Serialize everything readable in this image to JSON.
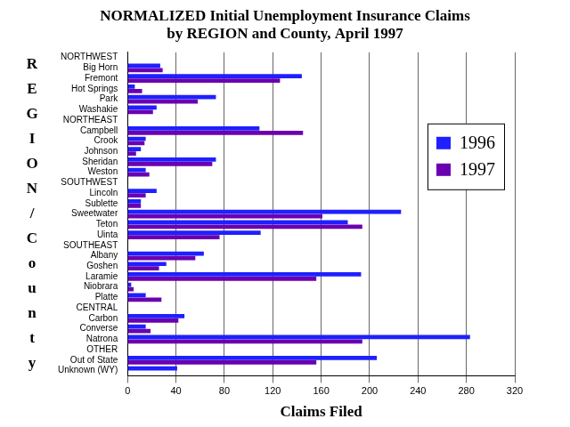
{
  "chart_data": {
    "type": "bar",
    "orientation": "horizontal",
    "title": [
      "NORMALIZED Initial Unemployment Insurance Claims",
      "by REGION and County, April 1997"
    ],
    "xlabel": "Claims Filed",
    "ylabel": "REGION/County",
    "categories": [
      "NORTHWEST",
      "Big Horn",
      "Fremont",
      "Hot Springs",
      "Park",
      "Washakie",
      "NORTHEAST",
      "Campbell",
      "Crook",
      "Johnson",
      "Sheridan",
      "Weston",
      "SOUTHWEST",
      "Lincoln",
      "Sublette",
      "Sweetwater",
      "Teton",
      "Uinta",
      "SOUTHEAST",
      "Albany",
      "Goshen",
      "Laramie",
      "Niobrara",
      "Platte",
      "CENTRAL",
      "Carbon",
      "Converse",
      "Natrona",
      "OTHER",
      "Out of State",
      "Unknown (WY)"
    ],
    "series": [
      {
        "name": "1996",
        "color": "#1f1fff",
        "values": [
          null,
          27,
          144,
          6,
          73,
          24,
          null,
          109,
          15,
          11,
          73,
          15,
          null,
          24,
          11,
          226,
          182,
          110,
          null,
          63,
          32,
          193,
          3,
          15,
          null,
          47,
          15,
          283,
          null,
          206,
          41
        ]
      },
      {
        "name": "1997",
        "color": "#6a00b0",
        "values": [
          null,
          29,
          126,
          12,
          58,
          21,
          null,
          145,
          14,
          7,
          70,
          18,
          null,
          15,
          11,
          161,
          194,
          76,
          null,
          56,
          26,
          156,
          5,
          28,
          null,
          42,
          19,
          194,
          null,
          156,
          0
        ]
      }
    ],
    "xlim": [
      0,
      320
    ],
    "xticks": [
      0,
      40,
      80,
      120,
      160,
      200,
      240,
      280,
      320
    ],
    "grid": true,
    "legend": "right"
  }
}
